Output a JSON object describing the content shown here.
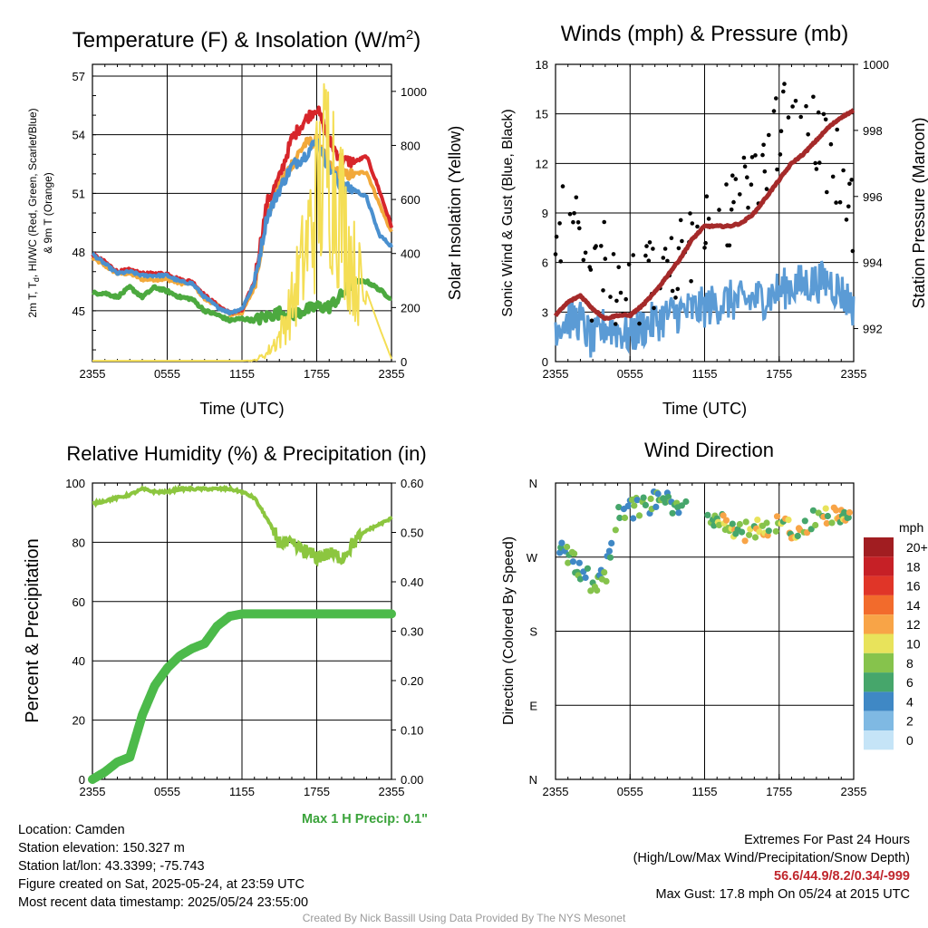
{
  "chart_data": [
    {
      "type": "line",
      "title": "Temperature (F) & Insolation (W/m²)",
      "title_parts": {
        "main": "Temperature (F) & Insolation (W/m",
        "sup": "2",
        "end": ")"
      },
      "xlabel": "Time (UTC)",
      "ylabel_left_lines": [
        "2m T, T",
        "d",
        ", HI/WC (Red, Green, Scarlet/Blue)",
        "& 9m T (Orange)"
      ],
      "ylabel_right": "Solar Insolation (Yellow)",
      "x_ticks": [
        "2355",
        "0555",
        "1155",
        "1755",
        "2355"
      ],
      "y_ticks_left": [
        "45",
        "48",
        "51",
        "54",
        "57"
      ],
      "y_ticks_right": [
        "0",
        "200",
        "400",
        "600",
        "800",
        "1000"
      ],
      "ylim_left": [
        42.4,
        57.6
      ],
      "ylim_right": [
        0,
        1100
      ],
      "grid": true,
      "x_hours": [
        0,
        1,
        2,
        3,
        4,
        5,
        6,
        7,
        8,
        9,
        10,
        11,
        12,
        13,
        14,
        15,
        16,
        17,
        18,
        19,
        20,
        21,
        22,
        23,
        24
      ],
      "series": [
        {
          "color": "#f2a93b",
          "axis": "left",
          "values": [
            47.7,
            47.3,
            46.9,
            46.9,
            46.6,
            46.6,
            46.6,
            46.4,
            46.4,
            45.6,
            45.3,
            44.8,
            44.9,
            46.2,
            49.9,
            51.4,
            52.5,
            53.5,
            53.7,
            52.4,
            51.9,
            52.0,
            52.1,
            50.5,
            49.0
          ]
        },
        {
          "color": "#d7262b",
          "axis": "left",
          "values": [
            47.9,
            47.5,
            47.0,
            47.1,
            46.9,
            46.9,
            46.9,
            46.6,
            46.5,
            45.8,
            45.3,
            44.9,
            45.0,
            46.5,
            50.5,
            51.8,
            53.8,
            54.7,
            55.4,
            53.7,
            52.7,
            52.6,
            52.9,
            51.2,
            49.3
          ]
        },
        {
          "color": "#4a90cf",
          "axis": "left",
          "values": [
            47.9,
            47.4,
            46.9,
            47.0,
            46.8,
            46.8,
            46.8,
            46.5,
            46.4,
            45.7,
            45.2,
            44.9,
            45.1,
            46.4,
            49.8,
            51.2,
            52.4,
            52.9,
            53.7,
            52.3,
            51.3,
            51.2,
            50.8,
            48.9,
            48.3
          ]
        },
        {
          "color": "#4ca93f",
          "axis": "left",
          "values": [
            45.9,
            45.9,
            45.7,
            46.2,
            45.7,
            46.2,
            46.0,
            45.7,
            45.6,
            45.0,
            44.8,
            44.5,
            44.6,
            44.5,
            44.7,
            44.9,
            44.8,
            45.0,
            45.2,
            45.2,
            45.8,
            46.5,
            46.5,
            46.1,
            45.6
          ]
        },
        {
          "color": "#f4de55",
          "axis": "right",
          "values": [
            3,
            3,
            3,
            3,
            3,
            3,
            3,
            3,
            3,
            3,
            3,
            3,
            3,
            5,
            35,
            110,
            250,
            450,
            700,
            900,
            650,
            400,
            260,
            130,
            10
          ]
        }
      ]
    },
    {
      "type": "scatter",
      "title": "Winds (mph) & Pressure (mb)",
      "xlabel": "Time (UTC)",
      "ylabel_left": "Sonic Wind & Gust (Blue, Black)",
      "ylabel_right": "Station Pressure (Maroon)",
      "x_ticks": [
        "2355",
        "0555",
        "1155",
        "1755",
        "2355"
      ],
      "y_ticks_left": [
        "0",
        "3",
        "6",
        "9",
        "12",
        "15",
        "18"
      ],
      "y_ticks_right": [
        "992",
        "994",
        "996",
        "998",
        "1000"
      ],
      "ylim_left": [
        0,
        18
      ],
      "ylim_right": [
        991,
        1000
      ],
      "grid": true,
      "x_hours": [
        0,
        1,
        2,
        3,
        4,
        5,
        6,
        7,
        8,
        9,
        10,
        11,
        12,
        13,
        14,
        15,
        16,
        17,
        18,
        19,
        20,
        21,
        22,
        23,
        24
      ],
      "series": [
        {
          "color": "#5b9bd5",
          "values": [
            2.2,
            2.6,
            2.5,
            1.1,
            2.2,
            1.9,
            1.6,
            2.1,
            2.4,
            2.8,
            3.0,
            3.1,
            3.3,
            3.5,
            3.7,
            3.6,
            3.8,
            3.9,
            4.3,
            4.6,
            4.7,
            4.8,
            4.9,
            4.2,
            3.3
          ]
        },
        {
          "color": "#000000",
          "values": [
            8.8,
            8.1,
            7.2,
            4.2,
            6.3,
            4.2,
            4.8,
            4.6,
            5.3,
            5.9,
            6.3,
            7.2,
            8.2,
            8.8,
            8.5,
            10.0,
            10.9,
            11.8,
            14.5,
            16.2,
            14.5,
            13.3,
            12.4,
            11.2,
            9.0
          ]
        },
        {
          "color": "#a52a2a",
          "values": [
            992.4,
            992.8,
            993.0,
            992.6,
            992.3,
            992.4,
            992.4,
            992.7,
            993.1,
            993.6,
            994.1,
            994.7,
            995.1,
            995.1,
            995.1,
            995.2,
            995.5,
            996.0,
            996.5,
            997.0,
            997.3,
            997.7,
            998.1,
            998.4,
            998.6
          ]
        }
      ]
    },
    {
      "type": "line",
      "title": "Relative Humidity (%) & Precipitation (in)",
      "ylabel_left": "Percent & Precipitation",
      "x_ticks": [
        "2355",
        "0555",
        "1155",
        "1755",
        "2355"
      ],
      "y_ticks_left": [
        "0",
        "20",
        "40",
        "60",
        "80",
        "100"
      ],
      "y_ticks_right": [
        "0.00",
        "0.10",
        "0.20",
        "0.30",
        "0.40",
        "0.50",
        "0.60"
      ],
      "ylim_left": [
        0,
        100
      ],
      "ylim_right": [
        0,
        0.6
      ],
      "grid": true,
      "x_hours": [
        0,
        1,
        2,
        3,
        4,
        5,
        6,
        7,
        8,
        9,
        10,
        11,
        12,
        13,
        14,
        15,
        16,
        17,
        18,
        19,
        20,
        21,
        22,
        23,
        24
      ],
      "series": [
        {
          "color": "#8cc63f",
          "axis": "left",
          "values": [
            93,
            94,
            95,
            96,
            98,
            97,
            97,
            98,
            98,
            98,
            98,
            98,
            97,
            95,
            88,
            80,
            79,
            77,
            75,
            76,
            75,
            80,
            84,
            86,
            88
          ]
        },
        {
          "color": "#4cba4a",
          "axis": "right",
          "values": [
            0.0,
            0.015,
            0.035,
            0.045,
            0.13,
            0.19,
            0.225,
            0.25,
            0.265,
            0.275,
            0.31,
            0.33,
            0.335,
            0.335,
            0.335,
            0.335,
            0.335,
            0.335,
            0.335,
            0.335,
            0.335,
            0.335,
            0.335,
            0.335,
            0.335
          ]
        }
      ],
      "note": "Max 1 H Precip: 0.1\""
    },
    {
      "type": "scatter",
      "title": "Wind Direction",
      "ylabel_left": "Direction (Colored By Speed)",
      "x_ticks": [
        "2355",
        "0555",
        "1155",
        "1755",
        "2355"
      ],
      "y_ticks_left": [
        "N",
        "E",
        "S",
        "W",
        "N"
      ],
      "ylim_left": [
        0,
        360
      ],
      "grid": true,
      "x_hours": [
        0,
        1,
        2,
        3,
        4,
        5,
        6,
        7,
        8,
        9,
        10,
        11,
        12,
        13,
        14,
        15,
        16,
        17,
        18,
        19,
        20,
        21,
        22,
        23,
        24
      ],
      "series": [
        {
          "values": [
            280,
            275,
            250,
            240,
            245,
            325,
            330,
            330,
            340,
            335,
            330,
            330,
            325,
            320,
            305,
            300,
            305,
            300,
            310,
            305,
            310,
            315,
            320,
            325,
            320
          ]
        }
      ],
      "legend_title": "mph",
      "legend_labels": [
        "20+",
        "18",
        "16",
        "14",
        "12",
        "10",
        "8",
        "6",
        "4",
        "2",
        "0"
      ],
      "legend_colors": [
        "#a11d21",
        "#c62026",
        "#e03528",
        "#f26b2c",
        "#f8a447",
        "#e8e35b",
        "#86c34c",
        "#46a66b",
        "#3f88c5",
        "#7fb9e3",
        "#c5e4f7"
      ]
    }
  ],
  "info_left": [
    "Location: Camden",
    "Station elevation: 150.327 m",
    "Station lat/lon: 43.3399; -75.743",
    "Figure created on Sat, 2025-05-24, at 23:59 UTC",
    "Most recent data timestamp: 2025/05/24 23:55:00"
  ],
  "info_right": {
    "line1": "Extremes For Past 24 Hours",
    "line2": "(High/Low/Max Wind/Precipitation/Snow Depth)",
    "extremes": "56.6/44.9/8.2/0.34/-999",
    "gust": "Max Gust: 17.8 mph On 05/24 at 2015 UTC"
  },
  "credit": "Created By Nick Bassill Using Data Provided By The NYS Mesonet"
}
